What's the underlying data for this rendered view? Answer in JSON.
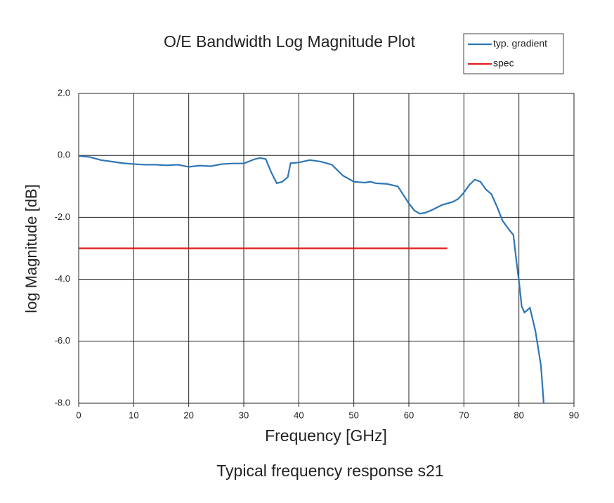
{
  "chart_data": {
    "type": "line",
    "title": "O/E Bandwidth Log Magnitude Plot",
    "caption": "Typical frequency response s21",
    "x_label": "Frequency [GHz]",
    "y_label": "log Magnitude [dB]",
    "xlim": [
      0,
      90
    ],
    "xticks": [
      0,
      10,
      20,
      30,
      40,
      50,
      60,
      70,
      80,
      90
    ],
    "ylim": [
      -8,
      2
    ],
    "yticks": [
      {
        "value": 2,
        "label": "2.0"
      },
      {
        "value": 0,
        "label": "0.0"
      },
      {
        "value": -2,
        "label": "-2.0"
      },
      {
        "value": -4,
        "label": "-4.0"
      },
      {
        "value": -6,
        "label": "-6.0"
      },
      {
        "value": -8,
        "label": "-8.0"
      }
    ],
    "grid": true,
    "legend": "top-right",
    "series": [
      {
        "name": "typ. gradient",
        "color": "#2e75b6",
        "x": [
          0,
          2,
          4,
          6,
          8,
          10,
          12,
          14,
          16,
          18,
          20,
          22,
          24,
          26,
          28,
          30,
          32,
          33,
          34,
          35,
          36,
          37,
          38,
          38.5,
          40,
          42,
          44,
          46,
          48,
          50,
          52,
          53,
          54,
          56,
          58,
          60,
          61,
          62,
          63,
          64,
          66,
          68,
          69,
          70,
          71,
          72,
          73,
          74,
          75,
          76,
          77,
          78,
          79,
          79.5,
          80,
          80.5,
          81,
          82,
          83,
          84,
          84.5
        ],
        "values": [
          -0.02,
          -0.05,
          -0.15,
          -0.2,
          -0.25,
          -0.28,
          -0.3,
          -0.3,
          -0.32,
          -0.3,
          -0.37,
          -0.33,
          -0.35,
          -0.28,
          -0.26,
          -0.26,
          -0.12,
          -0.08,
          -0.12,
          -0.55,
          -0.9,
          -0.85,
          -0.7,
          -0.25,
          -0.23,
          -0.15,
          -0.2,
          -0.3,
          -0.65,
          -0.85,
          -0.88,
          -0.85,
          -0.9,
          -0.92,
          -1.0,
          -1.55,
          -1.78,
          -1.88,
          -1.85,
          -1.78,
          -1.6,
          -1.5,
          -1.4,
          -1.2,
          -0.95,
          -0.78,
          -0.85,
          -1.1,
          -1.25,
          -1.65,
          -2.1,
          -2.35,
          -2.57,
          -3.35,
          -4.05,
          -4.87,
          -5.07,
          -4.92,
          -5.67,
          -6.78,
          -8.0
        ]
      },
      {
        "name": "spec",
        "color": "#e31a1c",
        "x": [
          0,
          67
        ],
        "values": [
          -3,
          -3
        ]
      }
    ]
  }
}
